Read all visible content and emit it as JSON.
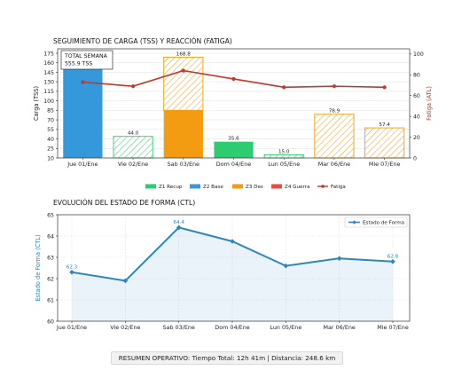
{
  "chart_data": [
    {
      "type": "bar",
      "title": "SEGUIMIENTO DE CARGA (TSS) Y REACCIÓN (FATIGA)",
      "ylabel": "Carga (TSS)",
      "y2label": "Fatiga (ATL)",
      "ylim": [
        10,
        182
      ],
      "yticks": [
        10,
        25,
        40,
        55,
        70,
        85,
        100,
        115,
        130,
        145,
        160,
        175
      ],
      "y2lim": [
        0,
        105
      ],
      "y2ticks": [
        0,
        20,
        40,
        60,
        80,
        100
      ],
      "categories": [
        "Jue 01/Ene",
        "Vie 02/Ene",
        "Sab 03/Ene",
        "Dom 04/Ene",
        "Lun 05/Ene",
        "Mar 06/Ene",
        "Mie 07/Ene"
      ],
      "bars": [
        {
          "zone": "Z2 Base",
          "value": 155.9,
          "label": ""
        },
        {
          "zone": "Z1 Recup",
          "value": 44.0,
          "label": "44.0",
          "hatch": true
        },
        {
          "zone": "Z3 Des",
          "value": 85,
          "label": "",
          "hatch": false,
          "stack_top": 168.8,
          "stack_label": "168.8"
        },
        {
          "zone": "Z1 Recup",
          "value": 35.6,
          "label": "35.6",
          "hatch": false
        },
        {
          "zone": "Z1 Recup",
          "value": 15.0,
          "label": "15.0",
          "hatch": true
        },
        {
          "zone": "Z3 Des",
          "value": 78.9,
          "label": "78.9",
          "hatch": true
        },
        {
          "zone": "Z3 Des",
          "value": 57.4,
          "label": "57.4",
          "hatch": true
        }
      ],
      "fatiga": [
        73,
        69,
        84,
        76,
        68,
        69,
        68
      ],
      "annotation": {
        "line1": "TOTAL SEMANA",
        "line2": "555.9 TSS"
      },
      "legend": [
        {
          "name": "Z1 Recup",
          "color": "#2ecc71",
          "type": "patch"
        },
        {
          "name": "Z2 Base",
          "color": "#3498db",
          "type": "patch"
        },
        {
          "name": "Z3 Des",
          "color": "#f39c12",
          "type": "patch"
        },
        {
          "name": "Z4 Guerra",
          "color": "#e74c3c",
          "type": "patch"
        },
        {
          "name": "Fatiga",
          "color": "#c0392b",
          "type": "line"
        }
      ],
      "legend_position": "bottom-center",
      "colors": {
        "z1": "#2ecc71",
        "z2": "#3498db",
        "z3": "#f39c12",
        "fatiga": "#c0392b"
      }
    },
    {
      "type": "line",
      "title": "EVOLUCIÓN DEL ESTADO DE FORMA (CTL)",
      "ylabel": "Estado de Forma (CTL)",
      "ylim": [
        60,
        65
      ],
      "yticks": [
        60,
        61,
        62,
        63,
        64,
        65
      ],
      "categories": [
        "Jue 01/Ene",
        "Vie 02/Ene",
        "Sab 03/Ene",
        "Dom 04/Ene",
        "Lun 05/Ene",
        "Mar 06/Ene",
        "Mie 07/Ene"
      ],
      "series": [
        {
          "name": "Estado de Forma",
          "values": [
            62.3,
            61.9,
            64.4,
            63.75,
            62.6,
            62.95,
            62.8
          ]
        }
      ],
      "point_labels": [
        {
          "index": 0,
          "text": "62.3"
        },
        {
          "index": 2,
          "text": "64.4"
        },
        {
          "index": 6,
          "text": "62.8"
        }
      ],
      "legend_position": "top-right",
      "grid": true,
      "color": "#2e86c1"
    }
  ],
  "footer": {
    "text": "RESUMEN OPERATIVO: Tiempo Total: 12h 41m  |  Distancia: 248.6 km"
  }
}
